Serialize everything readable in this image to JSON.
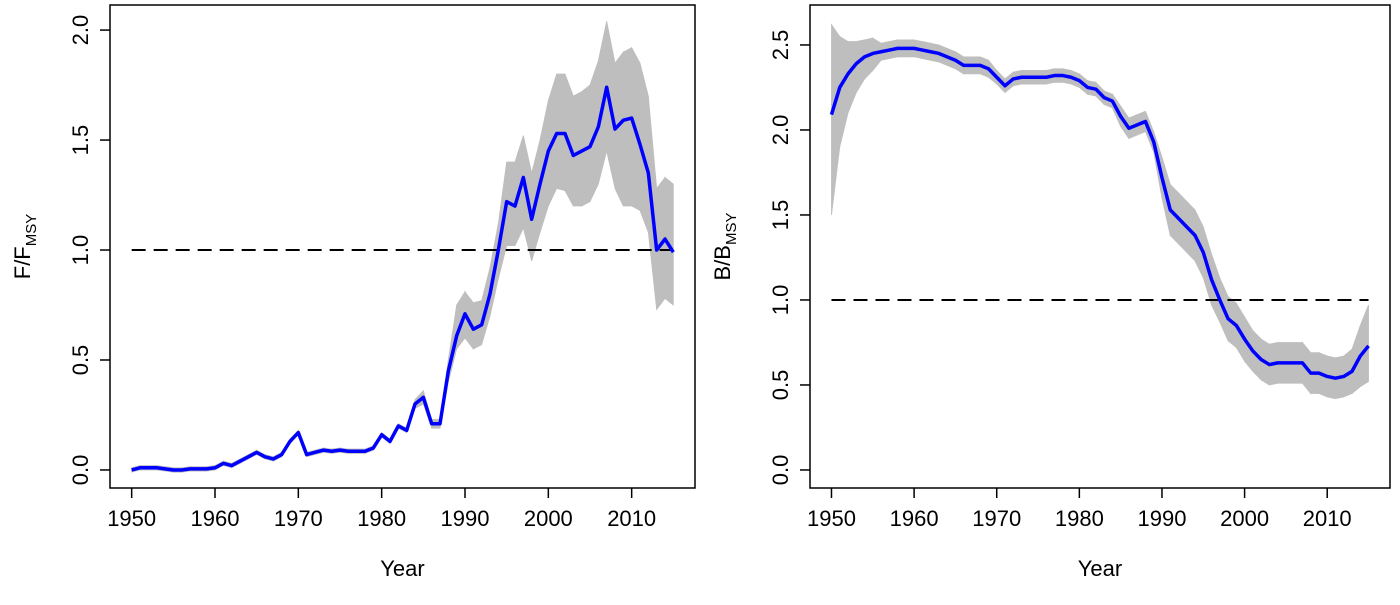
{
  "chart_data": [
    {
      "type": "line",
      "xlabel": "Year",
      "ylabel": "F/F",
      "ylabel_sub": "MSY",
      "hline": 1.0,
      "color": "#0000ff",
      "band_color": "#bebebe",
      "xlim": [
        1947.4,
        2017.6
      ],
      "ylim": [
        -0.082,
        2.114
      ],
      "xticks": [
        1950,
        1960,
        1970,
        1980,
        1990,
        2000,
        2010
      ],
      "yticks": [
        {
          "value": 0,
          "label": "0.0"
        },
        {
          "value": 0.5,
          "label": "0.5"
        },
        {
          "value": 1,
          "label": "1.0"
        },
        {
          "value": 1.5,
          "label": "1.5"
        },
        {
          "value": 2,
          "label": "2.0"
        }
      ],
      "x": [
        1950,
        1951,
        1952,
        1953,
        1954,
        1955,
        1956,
        1957,
        1958,
        1959,
        1960,
        1961,
        1962,
        1963,
        1964,
        1965,
        1966,
        1967,
        1968,
        1969,
        1970,
        1971,
        1972,
        1973,
        1974,
        1975,
        1976,
        1977,
        1978,
        1979,
        1980,
        1981,
        1982,
        1983,
        1984,
        1985,
        1986,
        1987,
        1988,
        1989,
        1990,
        1991,
        1992,
        1993,
        1994,
        1995,
        1996,
        1997,
        1998,
        1999,
        2000,
        2001,
        2002,
        2003,
        2004,
        2005,
        2006,
        2007,
        2008,
        2009,
        2010,
        2011,
        2012,
        2013,
        2014,
        2015
      ],
      "values": [
        0.0,
        0.01,
        0.01,
        0.01,
        0.005,
        0.0,
        0.0,
        0.005,
        0.005,
        0.005,
        0.01,
        0.03,
        0.02,
        0.04,
        0.06,
        0.08,
        0.06,
        0.05,
        0.07,
        0.13,
        0.17,
        0.07,
        0.08,
        0.09,
        0.085,
        0.09,
        0.085,
        0.085,
        0.085,
        0.1,
        0.16,
        0.13,
        0.2,
        0.18,
        0.3,
        0.33,
        0.21,
        0.21,
        0.45,
        0.61,
        0.71,
        0.64,
        0.66,
        0.8,
        1.0,
        1.22,
        1.2,
        1.33,
        1.14,
        1.3,
        1.45,
        1.53,
        1.53,
        1.43,
        1.45,
        1.47,
        1.56,
        1.74,
        1.55,
        1.59,
        1.6,
        1.48,
        1.35,
        1.0,
        1.05,
        0.99
      ],
      "lower": [
        -0.01,
        0,
        0,
        0,
        -0.005,
        -0.01,
        -0.01,
        -0.005,
        -0.005,
        -0.005,
        0,
        0.02,
        0.01,
        0.03,
        0.05,
        0.07,
        0.05,
        0.04,
        0.06,
        0.12,
        0.16,
        0.06,
        0.07,
        0.08,
        0.075,
        0.08,
        0.075,
        0.075,
        0.075,
        0.09,
        0.15,
        0.12,
        0.19,
        0.17,
        0.28,
        0.3,
        0.19,
        0.19,
        0.4,
        0.55,
        0.6,
        0.55,
        0.57,
        0.7,
        0.87,
        1.02,
        1.02,
        1.1,
        0.95,
        1.08,
        1.2,
        1.28,
        1.27,
        1.2,
        1.2,
        1.22,
        1.3,
        1.45,
        1.28,
        1.2,
        1.2,
        1.18,
        1.08,
        0.73,
        0.78,
        0.75
      ],
      "upper": [
        0.01,
        0.02,
        0.02,
        0.02,
        0.015,
        0.01,
        0.01,
        0.015,
        0.015,
        0.015,
        0.02,
        0.04,
        0.03,
        0.05,
        0.07,
        0.09,
        0.07,
        0.06,
        0.08,
        0.14,
        0.18,
        0.08,
        0.09,
        0.1,
        0.095,
        0.1,
        0.095,
        0.095,
        0.095,
        0.11,
        0.17,
        0.14,
        0.21,
        0.19,
        0.32,
        0.36,
        0.23,
        0.23,
        0.5,
        0.75,
        0.81,
        0.76,
        0.77,
        0.92,
        1.12,
        1.4,
        1.4,
        1.52,
        1.35,
        1.5,
        1.68,
        1.8,
        1.8,
        1.7,
        1.72,
        1.75,
        1.86,
        2.04,
        1.85,
        1.9,
        1.92,
        1.85,
        1.7,
        1.28,
        1.33,
        1.3
      ]
    },
    {
      "type": "line",
      "xlabel": "Year",
      "ylabel": "B/B",
      "ylabel_sub": "MSY",
      "hline": 1.0,
      "color": "#0000ff",
      "band_color": "#bebebe",
      "xlim": [
        1947.4,
        2017.6
      ],
      "ylim": [
        -0.106,
        2.735
      ],
      "xticks": [
        1950,
        1960,
        1970,
        1980,
        1990,
        2000,
        2010
      ],
      "yticks": [
        {
          "value": 0,
          "label": "0.0"
        },
        {
          "value": 0.5,
          "label": "0.5"
        },
        {
          "value": 1,
          "label": "1.0"
        },
        {
          "value": 1.5,
          "label": "1.5"
        },
        {
          "value": 2,
          "label": "2.0"
        },
        {
          "value": 2.5,
          "label": "2.5"
        }
      ],
      "x": [
        1950,
        1951,
        1952,
        1953,
        1954,
        1955,
        1956,
        1957,
        1958,
        1959,
        1960,
        1961,
        1962,
        1963,
        1964,
        1965,
        1966,
        1967,
        1968,
        1969,
        1970,
        1971,
        1972,
        1973,
        1974,
        1975,
        1976,
        1977,
        1978,
        1979,
        1980,
        1981,
        1982,
        1983,
        1984,
        1985,
        1986,
        1987,
        1988,
        1989,
        1990,
        1991,
        1992,
        1993,
        1994,
        1995,
        1996,
        1997,
        1998,
        1999,
        2000,
        2001,
        2002,
        2003,
        2004,
        2005,
        2006,
        2007,
        2008,
        2009,
        2010,
        2011,
        2012,
        2013,
        2014,
        2015
      ],
      "values": [
        2.09,
        2.25,
        2.33,
        2.39,
        2.43,
        2.45,
        2.46,
        2.47,
        2.48,
        2.48,
        2.48,
        2.47,
        2.46,
        2.45,
        2.43,
        2.41,
        2.38,
        2.38,
        2.38,
        2.36,
        2.31,
        2.26,
        2.3,
        2.31,
        2.31,
        2.31,
        2.31,
        2.32,
        2.32,
        2.31,
        2.29,
        2.25,
        2.24,
        2.19,
        2.17,
        2.08,
        2.01,
        2.03,
        2.05,
        1.93,
        1.72,
        1.53,
        1.48,
        1.43,
        1.38,
        1.28,
        1.12,
        1.0,
        0.89,
        0.85,
        0.77,
        0.7,
        0.65,
        0.62,
        0.63,
        0.63,
        0.63,
        0.63,
        0.57,
        0.57,
        0.55,
        0.54,
        0.55,
        0.58,
        0.67,
        0.73
      ],
      "lower": [
        1.5,
        1.9,
        2.1,
        2.22,
        2.3,
        2.35,
        2.41,
        2.42,
        2.43,
        2.43,
        2.43,
        2.42,
        2.41,
        2.4,
        2.38,
        2.36,
        2.33,
        2.33,
        2.33,
        2.31,
        2.27,
        2.22,
        2.26,
        2.27,
        2.27,
        2.27,
        2.27,
        2.28,
        2.28,
        2.27,
        2.25,
        2.21,
        2.2,
        2.15,
        2.13,
        2.02,
        1.95,
        1.97,
        1.99,
        1.87,
        1.6,
        1.38,
        1.33,
        1.28,
        1.23,
        1.13,
        0.97,
        0.87,
        0.76,
        0.72,
        0.64,
        0.58,
        0.53,
        0.5,
        0.51,
        0.51,
        0.51,
        0.51,
        0.45,
        0.45,
        0.43,
        0.42,
        0.43,
        0.45,
        0.49,
        0.52
      ],
      "upper": [
        2.62,
        2.55,
        2.52,
        2.52,
        2.53,
        2.54,
        2.51,
        2.52,
        2.53,
        2.53,
        2.53,
        2.52,
        2.51,
        2.5,
        2.48,
        2.46,
        2.43,
        2.43,
        2.43,
        2.41,
        2.35,
        2.3,
        2.34,
        2.35,
        2.35,
        2.35,
        2.35,
        2.36,
        2.36,
        2.35,
        2.33,
        2.29,
        2.28,
        2.23,
        2.21,
        2.14,
        2.07,
        2.09,
        2.11,
        1.99,
        1.84,
        1.68,
        1.63,
        1.58,
        1.53,
        1.43,
        1.27,
        1.13,
        1.02,
        0.98,
        0.9,
        0.82,
        0.77,
        0.74,
        0.75,
        0.75,
        0.75,
        0.75,
        0.69,
        0.69,
        0.67,
        0.66,
        0.67,
        0.71,
        0.85,
        0.97
      ]
    }
  ]
}
